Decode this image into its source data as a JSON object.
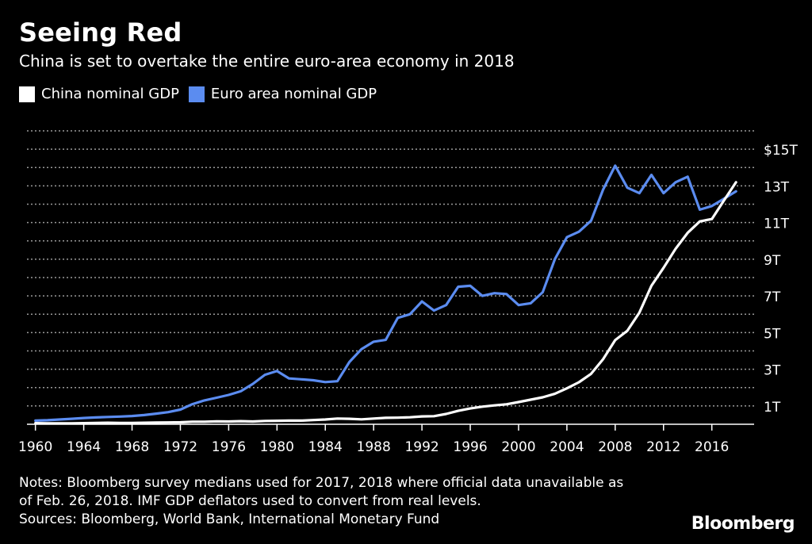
{
  "chart_data": {
    "type": "line",
    "title": "Seeing Red",
    "subtitle": "China is set to overtake the entire euro-area economy in 2018",
    "xlabel": "",
    "ylabel": "",
    "x": [
      1960,
      1961,
      1962,
      1963,
      1964,
      1965,
      1966,
      1967,
      1968,
      1969,
      1970,
      1971,
      1972,
      1973,
      1974,
      1975,
      1976,
      1977,
      1978,
      1979,
      1980,
      1981,
      1982,
      1983,
      1984,
      1985,
      1986,
      1987,
      1988,
      1989,
      1990,
      1991,
      1992,
      1993,
      1994,
      1995,
      1996,
      1997,
      1998,
      1999,
      2000,
      2001,
      2002,
      2003,
      2004,
      2005,
      2006,
      2007,
      2008,
      2009,
      2010,
      2011,
      2012,
      2013,
      2014,
      2015,
      2016,
      2017,
      2018
    ],
    "series": [
      {
        "name": "China nominal GDP",
        "color": "#ffffff",
        "values": [
          0.06,
          0.05,
          0.05,
          0.05,
          0.06,
          0.07,
          0.08,
          0.07,
          0.07,
          0.08,
          0.09,
          0.1,
          0.11,
          0.14,
          0.14,
          0.16,
          0.15,
          0.17,
          0.15,
          0.18,
          0.19,
          0.2,
          0.2,
          0.23,
          0.26,
          0.31,
          0.3,
          0.27,
          0.31,
          0.35,
          0.36,
          0.38,
          0.43,
          0.44,
          0.56,
          0.73,
          0.86,
          0.96,
          1.03,
          1.09,
          1.21,
          1.34,
          1.47,
          1.66,
          1.96,
          2.29,
          2.75,
          3.55,
          4.59,
          5.1,
          6.09,
          7.55,
          8.53,
          9.57,
          10.44,
          11.06,
          11.19,
          12.2,
          13.2
        ]
      },
      {
        "name": "Euro area nominal GDP",
        "color": "#5b8cf0",
        "values": [
          0.2,
          0.22,
          0.26,
          0.3,
          0.34,
          0.37,
          0.4,
          0.42,
          0.45,
          0.5,
          0.58,
          0.66,
          0.8,
          1.1,
          1.3,
          1.45,
          1.6,
          1.8,
          2.2,
          2.7,
          2.9,
          2.5,
          2.45,
          2.4,
          2.3,
          2.35,
          3.4,
          4.1,
          4.5,
          4.6,
          5.8,
          6.0,
          6.7,
          6.2,
          6.5,
          7.5,
          7.55,
          7.0,
          7.15,
          7.1,
          6.5,
          6.6,
          7.2,
          9.0,
          10.2,
          10.5,
          11.1,
          12.8,
          14.1,
          12.9,
          12.6,
          13.6,
          12.6,
          13.2,
          13.5,
          11.7,
          11.9,
          12.3,
          12.7
        ]
      }
    ],
    "yticks": [
      {
        "value": 1,
        "label": "1T"
      },
      {
        "value": 3,
        "label": "3T"
      },
      {
        "value": 5,
        "label": "5T"
      },
      {
        "value": 7,
        "label": "7T"
      },
      {
        "value": 9,
        "label": "9T"
      },
      {
        "value": 11,
        "label": "11T"
      },
      {
        "value": 13,
        "label": "13T"
      },
      {
        "value": 15,
        "label": "$15T"
      }
    ],
    "xticks": [
      1960,
      1964,
      1968,
      1972,
      1976,
      1980,
      1984,
      1988,
      1992,
      1996,
      2000,
      2004,
      2008,
      2012,
      2016
    ],
    "xlim": [
      1959.3,
      2019.5
    ],
    "ylim": [
      0,
      16
    ],
    "grid": true,
    "legend_position": "top-left"
  },
  "notes": {
    "line1": "Notes: Bloomberg survey medians used for 2017, 2018 where official data unavailable as",
    "line2": "of Feb. 26, 2018. IMF GDP deflators used to convert from real levels.",
    "line3": "Sources: Bloomberg, World Bank, International Monetary Fund"
  },
  "brand": "Bloomberg",
  "colors": {
    "background": "#000000",
    "grid": "#9a9a9a",
    "axis": "#ffffff"
  }
}
